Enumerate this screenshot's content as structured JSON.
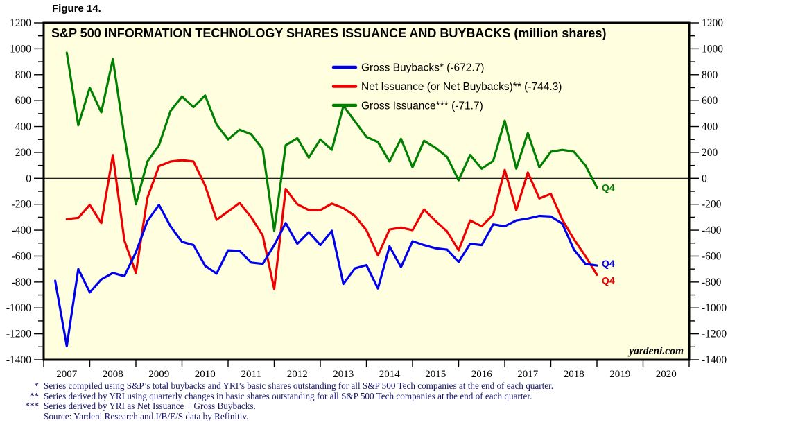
{
  "page": {
    "figure_label": "Figure 14."
  },
  "chart_data": {
    "type": "line",
    "title": "S&P 500 INFORMATION TECHNOLOGY SHARES ISSUANCE AND BUYBACKS (million shares)",
    "units": "million shares",
    "plot_background": "#ffffe0",
    "border_color": "#000000",
    "zero_line": 0,
    "ylim": [
      -1400,
      1200
    ],
    "ytick_step": 200,
    "y_major_ticks": [
      1200,
      1000,
      800,
      600,
      400,
      200,
      0,
      -200,
      -400,
      -600,
      -800,
      -1000,
      -1200,
      -1400
    ],
    "x_years": [
      "2007",
      "2008",
      "2009",
      "2010",
      "2011",
      "2012",
      "2013",
      "2014",
      "2015",
      "2016",
      "2017",
      "2018",
      "2019",
      "2020"
    ],
    "quarters_per_year": 4,
    "legend_position": "top-center-inside",
    "grid": "off",
    "watermark": "yardeni.com",
    "legend": [
      {
        "label": "Gross Buybacks* (-672.7)",
        "color": "#0000ee"
      },
      {
        "label": "Net Issuance (or Net Buybacks)** (-744.3)",
        "color": "#ee0000"
      },
      {
        "label": "Gross Issuance*** (-71.7)",
        "color": "#008000"
      }
    ],
    "series": [
      {
        "id": "gross-issuance",
        "name": "Gross Issuance*** (-71.7)",
        "color": "#008000",
        "start_quarter": "2007-Q2",
        "start_index": 1,
        "end_label": "Q4",
        "end_label_dy": 0,
        "last_value": -71.7,
        "values": [
          970,
          410,
          700,
          510,
          920,
          325,
          -200,
          130,
          255,
          520,
          630,
          550,
          640,
          415,
          300,
          375,
          340,
          225,
          -405,
          255,
          310,
          160,
          300,
          220,
          560,
          440,
          320,
          280,
          130,
          305,
          85,
          290,
          235,
          165,
          -15,
          180,
          75,
          135,
          445,
          75,
          350,
          85,
          205,
          220,
          205,
          100,
          -71.7
        ]
      },
      {
        "id": "net-issuance",
        "name": "Net Issuance (or Net Buybacks)** (-744.3)",
        "color": "#ee0000",
        "start_quarter": "2007-Q2",
        "start_index": 1,
        "end_label": "Q4",
        "end_label_dy": 8,
        "last_value": -744.3,
        "values": [
          -315,
          -305,
          -205,
          -345,
          180,
          -480,
          -730,
          -150,
          95,
          130,
          140,
          130,
          -55,
          -320,
          -255,
          -190,
          -300,
          -440,
          -855,
          -82,
          -200,
          -245,
          -245,
          -195,
          -230,
          -290,
          -400,
          -595,
          -395,
          -380,
          -400,
          -240,
          -330,
          -410,
          -555,
          -325,
          -370,
          -280,
          65,
          -245,
          45,
          -155,
          -120,
          -320,
          -470,
          -600,
          -744.3
        ]
      },
      {
        "id": "gross-buybacks",
        "name": "Gross Buybacks* (-672.7)",
        "color": "#0000ee",
        "start_quarter": "2007-Q1",
        "start_index": 0,
        "end_label": "Q4",
        "end_label_dy": -3,
        "last_value": -672.7,
        "values": [
          -790,
          -1295,
          -700,
          -880,
          -780,
          -730,
          -755,
          -570,
          -330,
          -205,
          -370,
          -490,
          -515,
          -675,
          -735,
          -555,
          -560,
          -650,
          -660,
          -515,
          -345,
          -505,
          -415,
          -515,
          -405,
          -815,
          -695,
          -670,
          -850,
          -525,
          -685,
          -485,
          -515,
          -540,
          -550,
          -645,
          -505,
          -515,
          -355,
          -370,
          -325,
          -310,
          -290,
          -295,
          -350,
          -550,
          -660,
          -672.7
        ]
      }
    ]
  },
  "footnotes": {
    "rows": [
      {
        "marker": "*",
        "text": "Series compiled using S&P’s total buybacks and YRI’s basic shares outstanding for all S&P 500 Tech companies at the end of each quarter."
      },
      {
        "marker": "**",
        "text": "Series derived by YRI using quarterly changes in basic shares outstanding for all S&P 500 Tech companies at the end of each quarter."
      },
      {
        "marker": "***",
        "text": "Series derived by YRI as Net Issuance + Gross Buybacks."
      },
      {
        "marker": "",
        "text": "Source: Yardeni Research and I/B/E/S data by Refinitiv."
      }
    ]
  }
}
